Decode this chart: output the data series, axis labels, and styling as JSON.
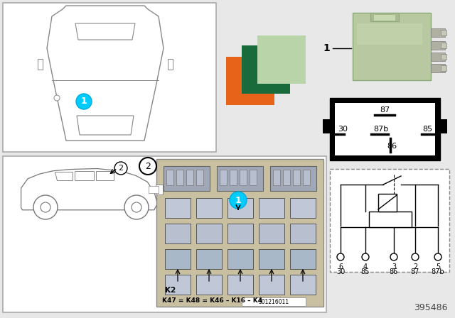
{
  "bg_color": "#e8e8e8",
  "part_number": "395486",
  "color_swatches": {
    "orange": "#E8631A",
    "dark_green": "#1A6B3C",
    "light_green": "#B8D4A8"
  },
  "relay_box_pins": [
    "87",
    "87b",
    "85",
    "30",
    "86"
  ],
  "schematic_pins_top": [
    "6",
    "4",
    "3",
    "2",
    "5"
  ],
  "schematic_pins_bot": [
    "30",
    "85",
    "86",
    "87",
    "87b"
  ]
}
